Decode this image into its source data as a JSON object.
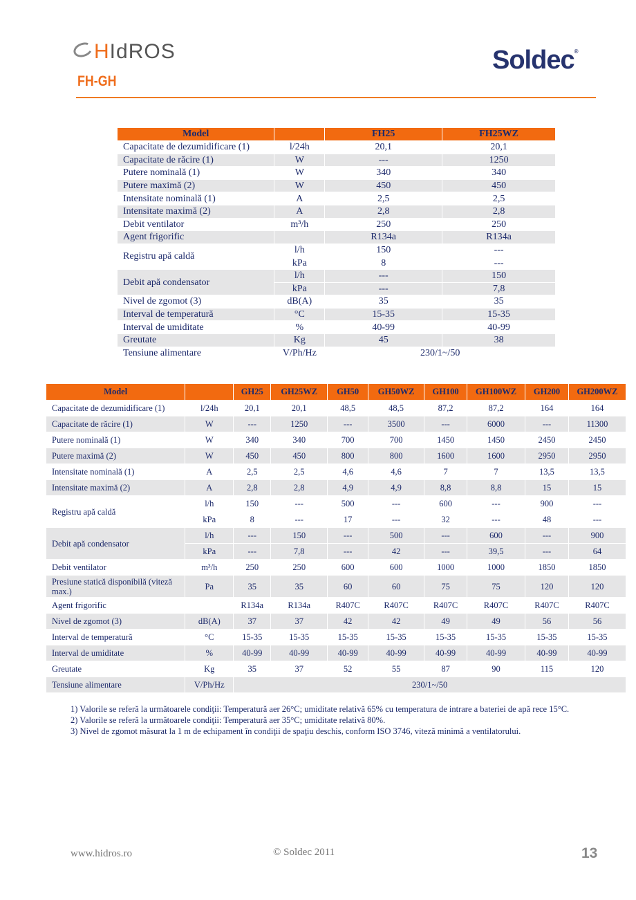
{
  "header": {
    "brand_left": "HIdROS",
    "brand_left_h": "H",
    "brand_left_rest": "IdROS",
    "product": "FH-GH",
    "brand_right": "Soldec",
    "registered": "®"
  },
  "table1": {
    "headers": [
      "Model",
      "",
      "FH25",
      "FH25WZ"
    ],
    "rows": [
      {
        "label": "Capacitate de dezumidificare (1)",
        "unit": "l/24h",
        "values": [
          "20,1",
          "20,1"
        ]
      },
      {
        "label": "Capacitate de răcire (1)",
        "unit": "W",
        "values": [
          "---",
          "1250"
        ]
      },
      {
        "label": "Putere nominală (1)",
        "unit": "W",
        "values": [
          "340",
          "340"
        ]
      },
      {
        "label": "Putere maximă (2)",
        "unit": "W",
        "values": [
          "450",
          "450"
        ]
      },
      {
        "label": "Intensitate nominală (1)",
        "unit": "A",
        "values": [
          "2,5",
          "2,5"
        ]
      },
      {
        "label": "Intensitate maximă (2)",
        "unit": "A",
        "values": [
          "2,8",
          "2,8"
        ]
      },
      {
        "label": "Debit ventilator",
        "unit": "m³/h",
        "values": [
          "250",
          "250"
        ]
      },
      {
        "label": "Agent frigorific",
        "unit": "",
        "values": [
          "R134a",
          "R134a"
        ]
      },
      {
        "label": "Registru apă caldă",
        "sub": [
          {
            "unit": "l/h",
            "values": [
              "150",
              "---"
            ]
          },
          {
            "unit": "kPa",
            "values": [
              "8",
              "---"
            ]
          }
        ]
      },
      {
        "label": "Debit apă condensator",
        "sub": [
          {
            "unit": "l/h",
            "values": [
              "---",
              "150"
            ]
          },
          {
            "unit": "kPa",
            "values": [
              "---",
              "7,8"
            ]
          }
        ]
      },
      {
        "label": "Nivel de zgomot (3)",
        "unit": "dB(A)",
        "values": [
          "35",
          "35"
        ]
      },
      {
        "label": "Interval de temperatură",
        "unit": "°C",
        "values": [
          "15-35",
          "15-35"
        ]
      },
      {
        "label": "Interval de umiditate",
        "unit": "%",
        "values": [
          "40-99",
          "40-99"
        ]
      },
      {
        "label": "Greutate",
        "unit": "Kg",
        "values": [
          "45",
          "38"
        ]
      },
      {
        "label": "Tensiune alimentare",
        "unit": "V/Ph/Hz",
        "span": "230/1~/50"
      }
    ]
  },
  "table2": {
    "headers": [
      "Model",
      "",
      "GH25",
      "GH25WZ",
      "GH50",
      "GH50WZ",
      "GH100",
      "GH100WZ",
      "GH200",
      "GH200WZ"
    ],
    "rows": [
      {
        "label": "Capacitate de dezumidificare (1)",
        "unit": "l/24h",
        "values": [
          "20,1",
          "20,1",
          "48,5",
          "48,5",
          "87,2",
          "87,2",
          "164",
          "164"
        ]
      },
      {
        "label": "Capacitate de răcire (1)",
        "unit": "W",
        "values": [
          "---",
          "1250",
          "---",
          "3500",
          "---",
          "6000",
          "---",
          "11300"
        ]
      },
      {
        "label": "Putere nominală (1)",
        "unit": "W",
        "values": [
          "340",
          "340",
          "700",
          "700",
          "1450",
          "1450",
          "2450",
          "2450"
        ]
      },
      {
        "label": "Putere maximă (2)",
        "unit": "W",
        "values": [
          "450",
          "450",
          "800",
          "800",
          "1600",
          "1600",
          "2950",
          "2950"
        ]
      },
      {
        "label": "Intensitate nominală (1)",
        "unit": "A",
        "values": [
          "2,5",
          "2,5",
          "4,6",
          "4,6",
          "7",
          "7",
          "13,5",
          "13,5"
        ]
      },
      {
        "label": "Intensitate maximă (2)",
        "unit": "A",
        "values": [
          "2,8",
          "2,8",
          "4,9",
          "4,9",
          "8,8",
          "8,8",
          "15",
          "15"
        ]
      },
      {
        "label": "Registru apă caldă",
        "sub": [
          {
            "unit": "l/h",
            "values": [
              "150",
              "---",
              "500",
              "---",
              "600",
              "---",
              "900",
              "---"
            ]
          },
          {
            "unit": "kPa",
            "values": [
              "8",
              "---",
              "17",
              "---",
              "32",
              "---",
              "48",
              "---"
            ]
          }
        ]
      },
      {
        "label": "Debit apă condensator",
        "sub": [
          {
            "unit": "l/h",
            "values": [
              "---",
              "150",
              "---",
              "500",
              "---",
              "600",
              "---",
              "900"
            ]
          },
          {
            "unit": "kPa",
            "values": [
              "---",
              "7,8",
              "---",
              "42",
              "---",
              "39,5",
              "---",
              "64"
            ]
          }
        ]
      },
      {
        "label": "Debit ventilator",
        "unit": "m³/h",
        "values": [
          "250",
          "250",
          "600",
          "600",
          "1000",
          "1000",
          "1850",
          "1850"
        ]
      },
      {
        "label": "Presiune statică disponibilă (viteză max.)",
        "unit": "Pa",
        "values": [
          "35",
          "35",
          "60",
          "60",
          "75",
          "75",
          "120",
          "120"
        ],
        "tall": true
      },
      {
        "label": "Agent frigorific",
        "unit": "",
        "values": [
          "R134a",
          "R134a",
          "R407C",
          "R407C",
          "R407C",
          "R407C",
          "R407C",
          "R407C"
        ]
      },
      {
        "label": "Nivel de zgomot (3)",
        "unit": "dB(A)",
        "values": [
          "37",
          "37",
          "42",
          "42",
          "49",
          "49",
          "56",
          "56"
        ]
      },
      {
        "label": "Interval de temperatură",
        "unit": "°C",
        "values": [
          "15-35",
          "15-35",
          "15-35",
          "15-35",
          "15-35",
          "15-35",
          "15-35",
          "15-35"
        ]
      },
      {
        "label": "Interval de umiditate",
        "unit": "%",
        "values": [
          "40-99",
          "40-99",
          "40-99",
          "40-99",
          "40-99",
          "40-99",
          "40-99",
          "40-99"
        ]
      },
      {
        "label": "Greutate",
        "unit": "Kg",
        "values": [
          "35",
          "37",
          "52",
          "55",
          "87",
          "90",
          "115",
          "120"
        ]
      },
      {
        "label": "Tensiune alimentare",
        "unit": "V/Ph/Hz",
        "span": "230/1~/50"
      }
    ]
  },
  "notes": [
    "1) Valorile se referă la următoarele condiţii: Temperatură aer 26°C; umiditate relativă 65% cu temperatura de intrare a bateriei de apă rece 15°C.",
    "2) Valorile se referă la următoarele condiţii: Temperatură aer 35°C; umiditate relativă 80%.",
    "3) Nivel de zgomot măsurat la 1 m de echipament în condiţii de spaţiu deschis, conform ISO 3746, viteză minimă a ventilatorului."
  ],
  "footer": {
    "website": "www.hidros.ro",
    "copyright": "© Soldec 2011",
    "page_number": "13"
  }
}
